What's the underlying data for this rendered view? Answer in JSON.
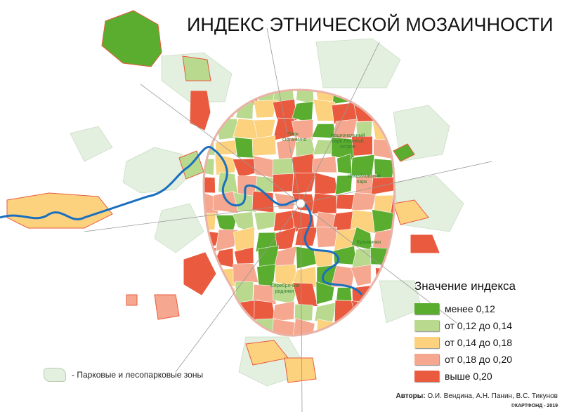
{
  "title": "ИНДЕКС ЭТНИЧЕСКОЙ МОЗАИЧНОСТИ",
  "legend": {
    "title": "Значение индекса",
    "classes": [
      {
        "label": "менее 0,12",
        "color": "#5aad2e"
      },
      {
        "label": "от 0,12 до 0,14",
        "color": "#b9d98f"
      },
      {
        "label": "от 0,14 до 0,18",
        "color": "#fcd27f"
      },
      {
        "label": "от 0,18 до 0,20",
        "color": "#f5a88f"
      },
      {
        "label": "выше 0,20",
        "color": "#e95a3e"
      }
    ]
  },
  "park_note": "- Парковые и лесопарковые зоны",
  "park_color": "#e3efdf",
  "river_color": "#1a6fc0",
  "map_labels": {
    "ostankino": "Парк Останкино",
    "losiny": "Национальный парк Лосиный остров",
    "izmailovsky": "Измайловский парк",
    "kuzminki": "Кузьминки",
    "rodniki": "Серебряные родники"
  },
  "authors_label": "Авторы:",
  "authors": "О.И. Вендина, А.Н. Панин, В.С. Тикунов",
  "copyright": "©КАРТФОНД - 2019"
}
